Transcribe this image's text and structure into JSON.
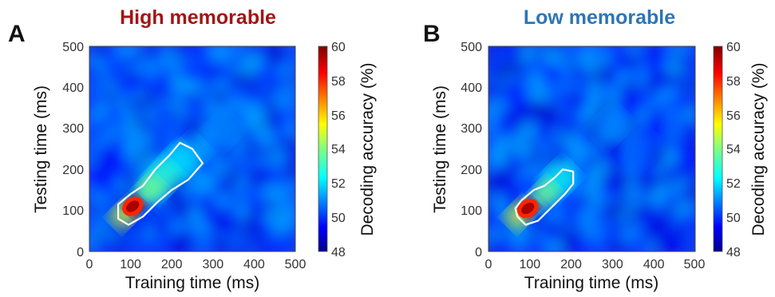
{
  "chart_data": [
    {
      "type": "heatmap",
      "panel": "A",
      "title": "High memorable",
      "title_color": "#a31515",
      "xlabel": "Training time (ms)",
      "ylabel": "Testing time (ms)",
      "xlim": [
        0,
        500
      ],
      "ylim": [
        0,
        500
      ],
      "x_ticks": [
        "0",
        "100",
        "200",
        "300",
        "400",
        "500"
      ],
      "y_ticks": [
        "0",
        "100",
        "200",
        "300",
        "400",
        "500"
      ],
      "colorbar": {
        "label": "Decoding accuracy (%)",
        "range": [
          48,
          60
        ],
        "ticks": [
          "48",
          "50",
          "52",
          "54",
          "56",
          "58",
          "60"
        ],
        "colormap": "jet"
      },
      "peak": {
        "train_ms": 105,
        "test_ms": 110,
        "accuracy": 59.5
      },
      "ridge": [
        {
          "train_ms": 85,
          "test_ms": 90,
          "accuracy": 55
        },
        {
          "train_ms": 110,
          "test_ms": 110,
          "accuracy": 59.5
        },
        {
          "train_ms": 145,
          "test_ms": 150,
          "accuracy": 54
        },
        {
          "train_ms": 175,
          "test_ms": 175,
          "accuracy": 53
        },
        {
          "train_ms": 210,
          "test_ms": 215,
          "accuracy": 52
        },
        {
          "train_ms": 240,
          "test_ms": 235,
          "accuracy": 51.5
        },
        {
          "train_ms": 320,
          "test_ms": 290,
          "accuracy": 51
        }
      ],
      "significance_contour": [
        [
          70,
          80
        ],
        [
          95,
          65
        ],
        [
          130,
          85
        ],
        [
          165,
          120
        ],
        [
          200,
          150
        ],
        [
          240,
          175
        ],
        [
          275,
          215
        ],
        [
          250,
          250
        ],
        [
          220,
          265
        ],
        [
          195,
          235
        ],
        [
          160,
          200
        ],
        [
          130,
          160
        ],
        [
          100,
          140
        ],
        [
          70,
          115
        ]
      ],
      "contour_color": "#ffffff"
    },
    {
      "type": "heatmap",
      "panel": "B",
      "title": "Low memorable",
      "title_color": "#2e75b6",
      "xlabel": "Training time (ms)",
      "ylabel": "Testing time (ms)",
      "xlim": [
        0,
        500
      ],
      "ylim": [
        0,
        500
      ],
      "x_ticks": [
        "0",
        "100",
        "200",
        "300",
        "400",
        "500"
      ],
      "y_ticks": [
        "0",
        "100",
        "200",
        "300",
        "400",
        "500"
      ],
      "colorbar": {
        "label": "Decoding accuracy (%)",
        "range": [
          48,
          60
        ],
        "ticks": [
          "48",
          "50",
          "52",
          "54",
          "56",
          "58",
          "60"
        ],
        "colormap": "jet"
      },
      "peak": {
        "train_ms": 95,
        "test_ms": 105,
        "accuracy": 59.5
      },
      "ridge": [
        {
          "train_ms": 75,
          "test_ms": 90,
          "accuracy": 55
        },
        {
          "train_ms": 98,
          "test_ms": 105,
          "accuracy": 59.5
        },
        {
          "train_ms": 135,
          "test_ms": 140,
          "accuracy": 54
        },
        {
          "train_ms": 170,
          "test_ms": 175,
          "accuracy": 52.5
        },
        {
          "train_ms": 295,
          "test_ms": 305,
          "accuracy": 51
        },
        {
          "train_ms": 370,
          "test_ms": 250,
          "accuracy": 50.5
        }
      ],
      "significance_contour": [
        [
          70,
          85
        ],
        [
          90,
          65
        ],
        [
          120,
          75
        ],
        [
          150,
          105
        ],
        [
          185,
          140
        ],
        [
          205,
          165
        ],
        [
          205,
          195
        ],
        [
          180,
          200
        ],
        [
          160,
          180
        ],
        [
          135,
          160
        ],
        [
          110,
          150
        ],
        [
          80,
          125
        ],
        [
          65,
          105
        ]
      ],
      "contour_color": "#ffffff"
    }
  ]
}
